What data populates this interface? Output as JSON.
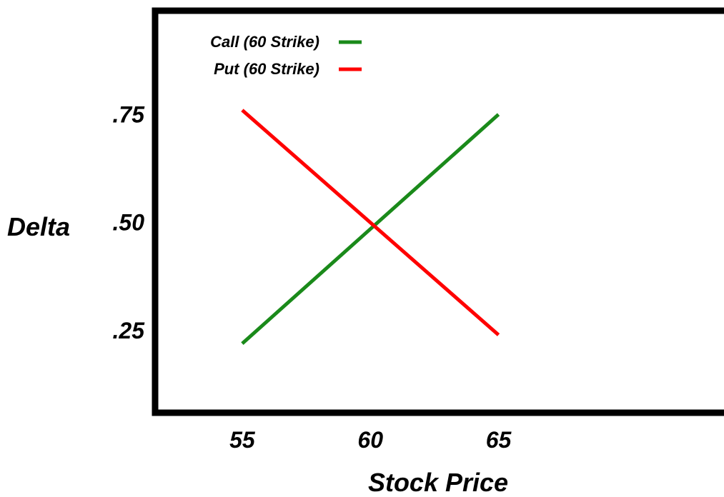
{
  "chart_data": {
    "type": "line",
    "title": "",
    "xlabel": "Stock Price",
    "ylabel": "Delta",
    "x": [
      55,
      65
    ],
    "x_ticks": [
      "55",
      "60",
      "65"
    ],
    "x_tick_values": [
      55,
      60,
      65
    ],
    "y_ticks": [
      ".75",
      ".50",
      ".25"
    ],
    "y_tick_values": [
      0.75,
      0.5,
      0.25
    ],
    "xlim": [
      51.6,
      73.8
    ],
    "ylim": [
      0.06,
      0.99
    ],
    "grid": false,
    "legend_position": "top-left",
    "series": [
      {
        "name": "Call (60 Strike)",
        "color": "#1a8a1a",
        "x": [
          55,
          65
        ],
        "values": [
          0.22,
          0.75
        ]
      },
      {
        "name": "Put (60 Strike)",
        "color": "#ff0000",
        "x": [
          55,
          65
        ],
        "values": [
          0.76,
          0.24
        ]
      }
    ]
  }
}
